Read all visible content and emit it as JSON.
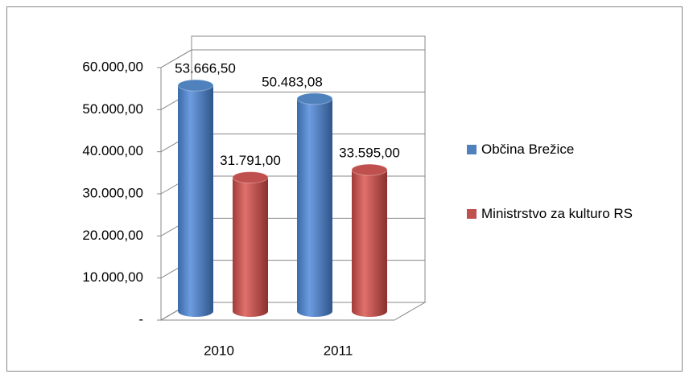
{
  "chart_data": {
    "type": "bar3d",
    "categories": [
      "2010",
      "2011"
    ],
    "series": [
      {
        "name": "Občina Brežice",
        "color": "#4f81bd",
        "values": [
          53666.5,
          50483.08
        ],
        "value_labels": [
          "53.666,50",
          "50.483,08"
        ]
      },
      {
        "name": "Ministrstvo za kulturo RS",
        "color": "#c0504d",
        "values": [
          31791,
          33595
        ],
        "value_labels": [
          "31.791,00",
          "33.595,00"
        ]
      }
    ],
    "ylim": [
      0,
      60000
    ],
    "yticks": [
      {
        "value": 0,
        "label": "-"
      },
      {
        "value": 10000,
        "label": "10.000,00"
      },
      {
        "value": 20000,
        "label": "20.000,00"
      },
      {
        "value": 30000,
        "label": "30.000,00"
      },
      {
        "value": 40000,
        "label": "40.000,00"
      },
      {
        "value": 50000,
        "label": "50.000,00"
      },
      {
        "value": 60000,
        "label": "60.000,00"
      }
    ],
    "grid": true,
    "legend": "right"
  }
}
